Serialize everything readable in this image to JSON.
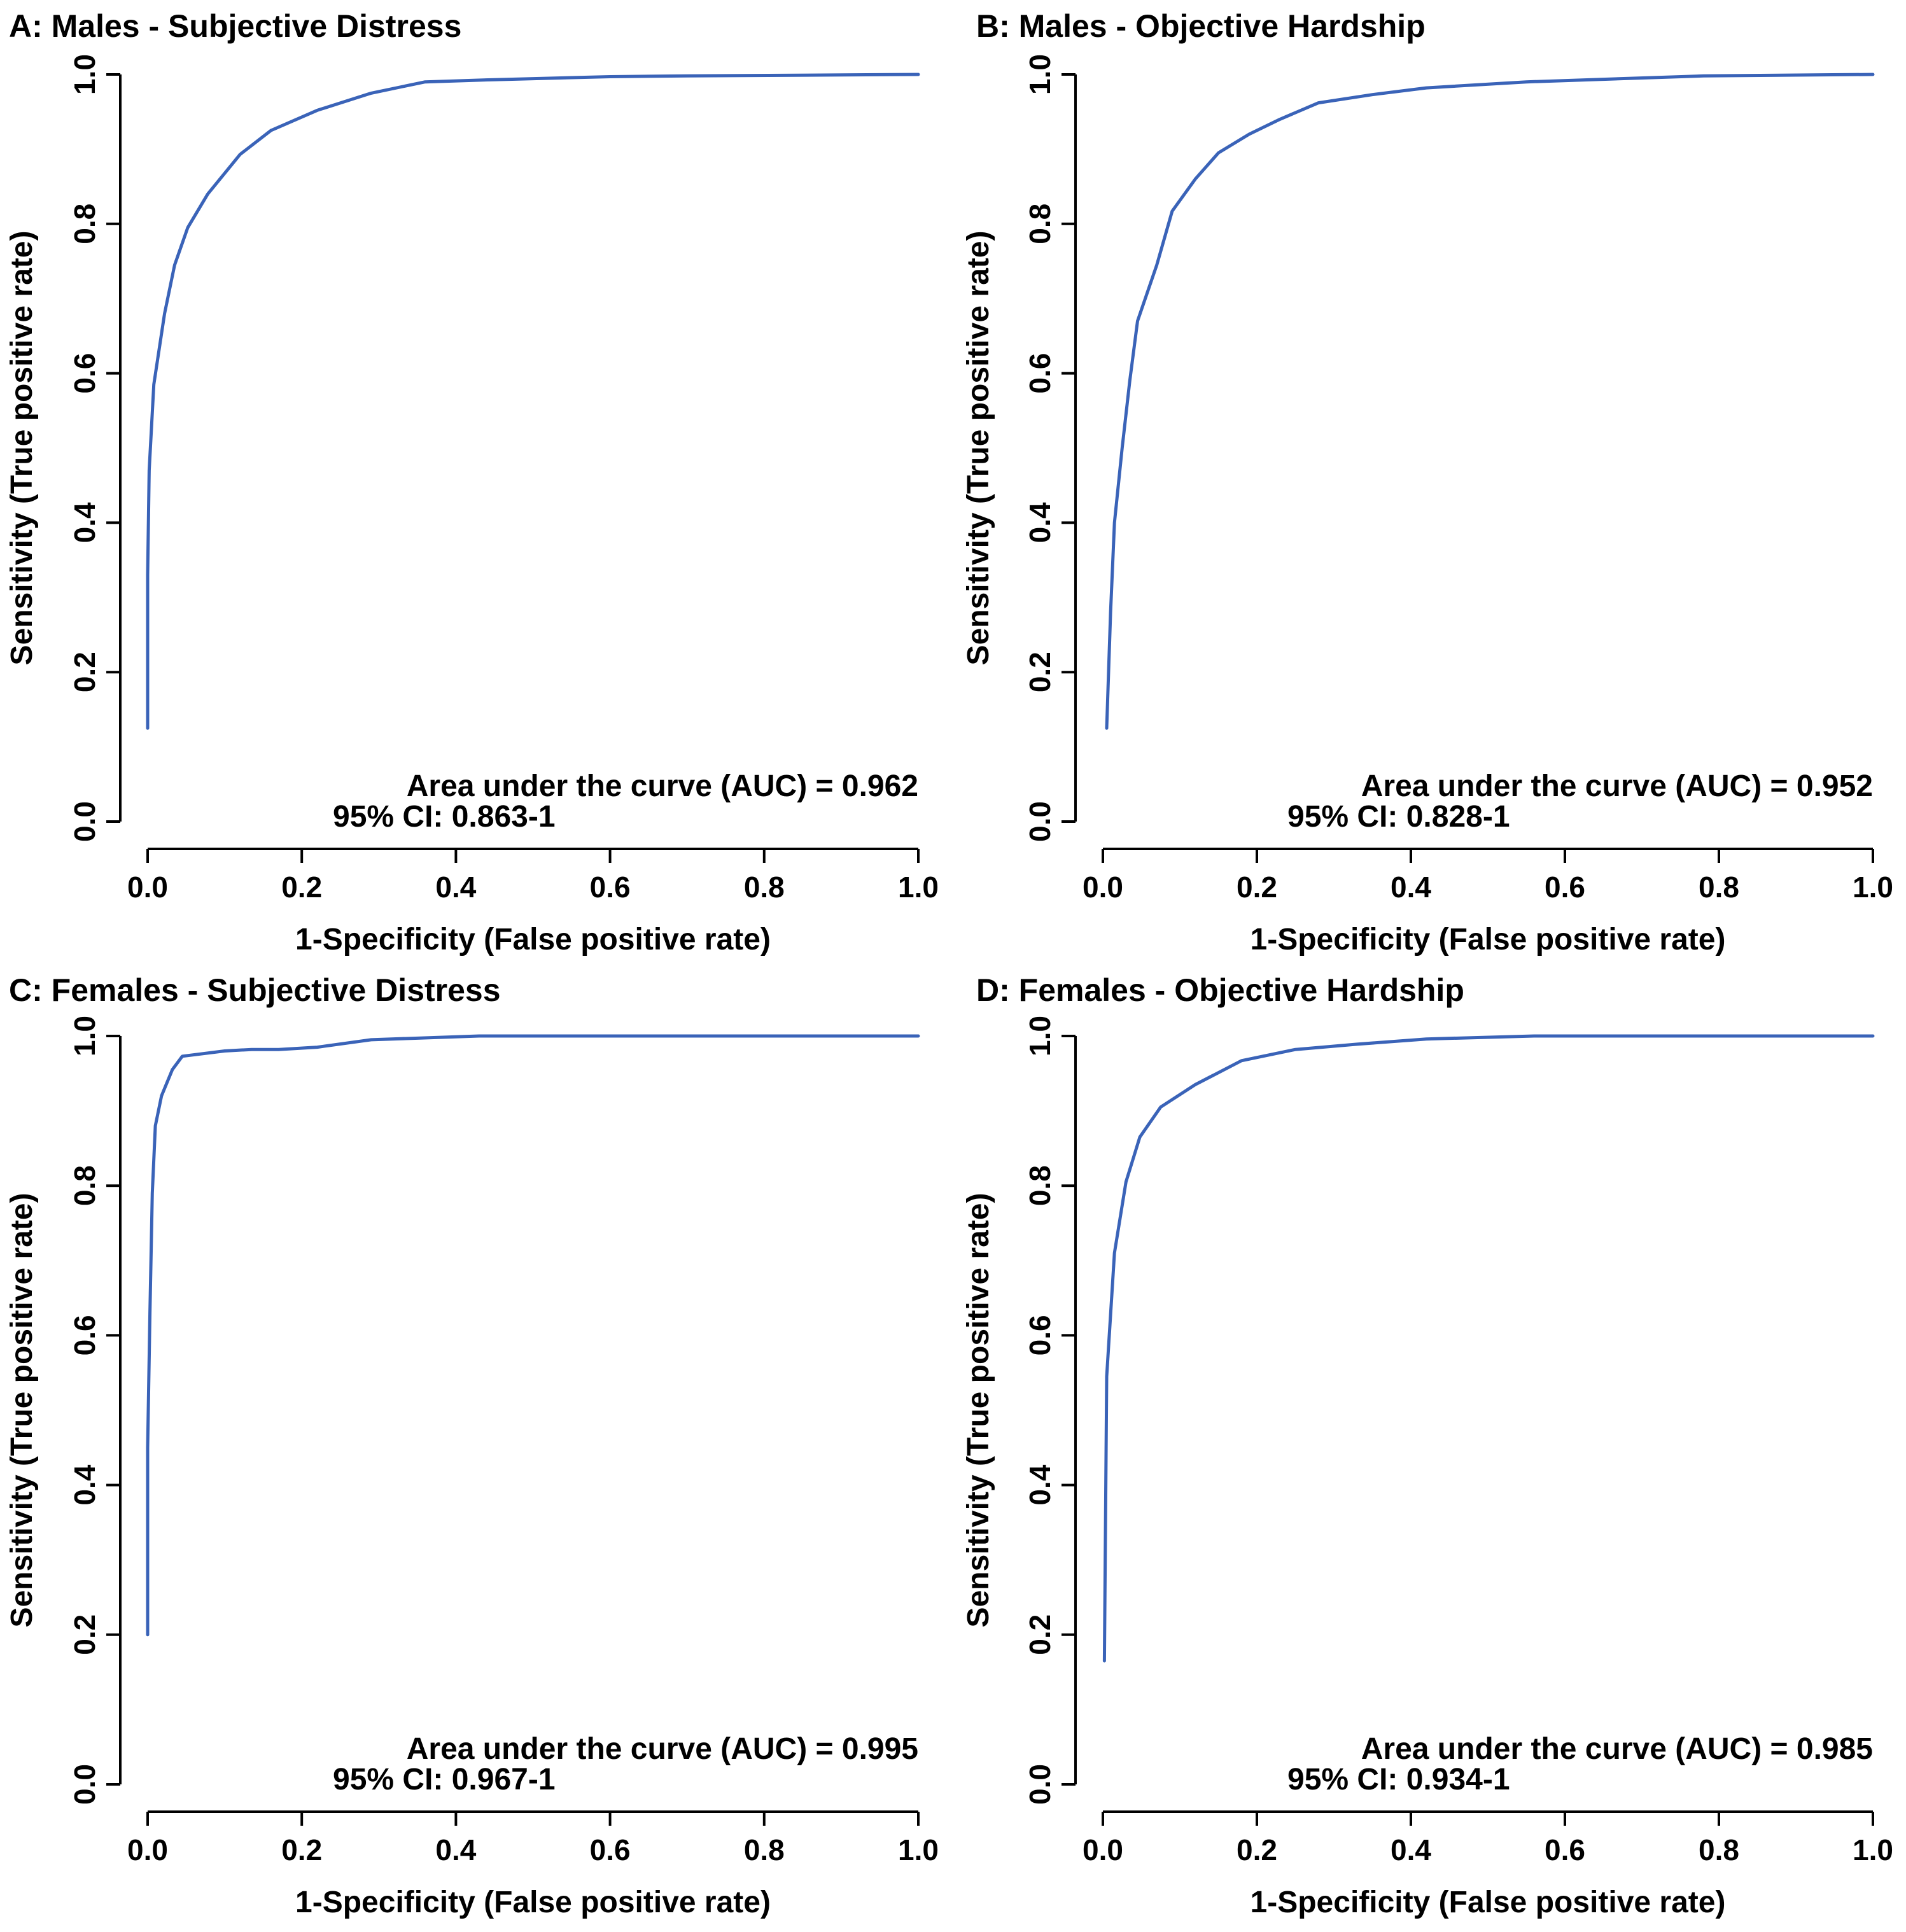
{
  "figure": {
    "curve_color": "#3a63b8",
    "axis_color": "#000000"
  },
  "chart_data": [
    {
      "type": "line",
      "title": "A: Males - Subjective Distress",
      "xlabel": "1-Specificity (False positive rate)",
      "ylabel": "Sensitivity (True positive rate)",
      "xlim": [
        0,
        1
      ],
      "ylim": [
        0,
        1
      ],
      "xticks": [
        "0.0",
        "0.2",
        "0.4",
        "0.6",
        "0.8",
        "1.0"
      ],
      "yticks": [
        "0.0",
        "0.2",
        "0.4",
        "0.6",
        "0.8",
        "1.0"
      ],
      "grid": false,
      "annotation": {
        "auc": "Area under the curve (AUC) = 0.962",
        "ci": "95% CI: 0.863-1"
      },
      "series": [
        {
          "name": "ROC",
          "x": [
            0.0,
            0.0,
            0.002,
            0.008,
            0.022,
            0.035,
            0.052,
            0.078,
            0.12,
            0.16,
            0.22,
            0.29,
            0.36,
            0.45,
            0.6,
            0.7,
            1.0
          ],
          "y": [
            0.125,
            0.33,
            0.47,
            0.585,
            0.68,
            0.745,
            0.795,
            0.84,
            0.893,
            0.925,
            0.952,
            0.975,
            0.99,
            0.993,
            0.997,
            0.998,
            1.0
          ]
        }
      ]
    },
    {
      "type": "line",
      "title": "B: Males - Objective Hardship",
      "xlabel": "1-Specificity (False positive rate)",
      "ylabel": "Sensitivity (True positive rate)",
      "xlim": [
        0,
        1
      ],
      "ylim": [
        0,
        1
      ],
      "xticks": [
        "0.0",
        "0.2",
        "0.4",
        "0.6",
        "0.8",
        "1.0"
      ],
      "yticks": [
        "0.0",
        "0.2",
        "0.4",
        "0.6",
        "0.8",
        "1.0"
      ],
      "grid": false,
      "annotation": {
        "auc": "Area under the curve (AUC) = 0.952",
        "ci": "95% CI: 0.828-1"
      },
      "series": [
        {
          "name": "ROC",
          "x": [
            0.005,
            0.01,
            0.015,
            0.025,
            0.035,
            0.045,
            0.07,
            0.09,
            0.12,
            0.15,
            0.19,
            0.23,
            0.28,
            0.35,
            0.42,
            0.55,
            0.78,
            1.0
          ],
          "y": [
            0.125,
            0.28,
            0.4,
            0.5,
            0.59,
            0.67,
            0.745,
            0.817,
            0.86,
            0.895,
            0.92,
            0.94,
            0.962,
            0.973,
            0.982,
            0.99,
            0.998,
            1.0
          ]
        }
      ]
    },
    {
      "type": "line",
      "title": "C: Females - Subjective Distress",
      "xlabel": "1-Specificity (False positive rate)",
      "ylabel": "Sensitivity (True positive rate)",
      "xlim": [
        0,
        1
      ],
      "ylim": [
        0,
        1
      ],
      "xticks": [
        "0.0",
        "0.2",
        "0.4",
        "0.6",
        "0.8",
        "1.0"
      ],
      "yticks": [
        "0.0",
        "0.2",
        "0.4",
        "0.6",
        "0.8",
        "1.0"
      ],
      "grid": false,
      "annotation": {
        "auc": "Area under the curve (AUC) = 0.995",
        "ci": "95% CI: 0.967-1"
      },
      "series": [
        {
          "name": "ROC",
          "x": [
            0.0,
            0.0,
            0.003,
            0.006,
            0.01,
            0.018,
            0.032,
            0.045,
            0.1,
            0.135,
            0.17,
            0.22,
            0.29,
            0.43,
            1.0
          ],
          "y": [
            0.2,
            0.45,
            0.63,
            0.79,
            0.88,
            0.92,
            0.955,
            0.973,
            0.98,
            0.982,
            0.982,
            0.985,
            0.995,
            1.0,
            1.0
          ]
        }
      ]
    },
    {
      "type": "line",
      "title": "D: Females - Objective Hardship",
      "xlabel": "1-Specificity (False positive rate)",
      "ylabel": "Sensitivity (True positive rate)",
      "xlim": [
        0,
        1
      ],
      "ylim": [
        0,
        1
      ],
      "xticks": [
        "0.0",
        "0.2",
        "0.4",
        "0.6",
        "0.8",
        "1.0"
      ],
      "yticks": [
        "0.0",
        "0.2",
        "0.4",
        "0.6",
        "0.8",
        "1.0"
      ],
      "grid": false,
      "annotation": {
        "auc": "Area under the curve (AUC) = 0.985",
        "ci": "95% CI: 0.934-1"
      },
      "series": [
        {
          "name": "ROC",
          "x": [
            0.002,
            0.005,
            0.015,
            0.03,
            0.048,
            0.075,
            0.12,
            0.18,
            0.25,
            0.33,
            0.42,
            0.56,
            1.0
          ],
          "y": [
            0.165,
            0.545,
            0.71,
            0.805,
            0.865,
            0.905,
            0.935,
            0.967,
            0.982,
            0.989,
            0.996,
            1.0,
            1.0
          ]
        }
      ]
    }
  ]
}
